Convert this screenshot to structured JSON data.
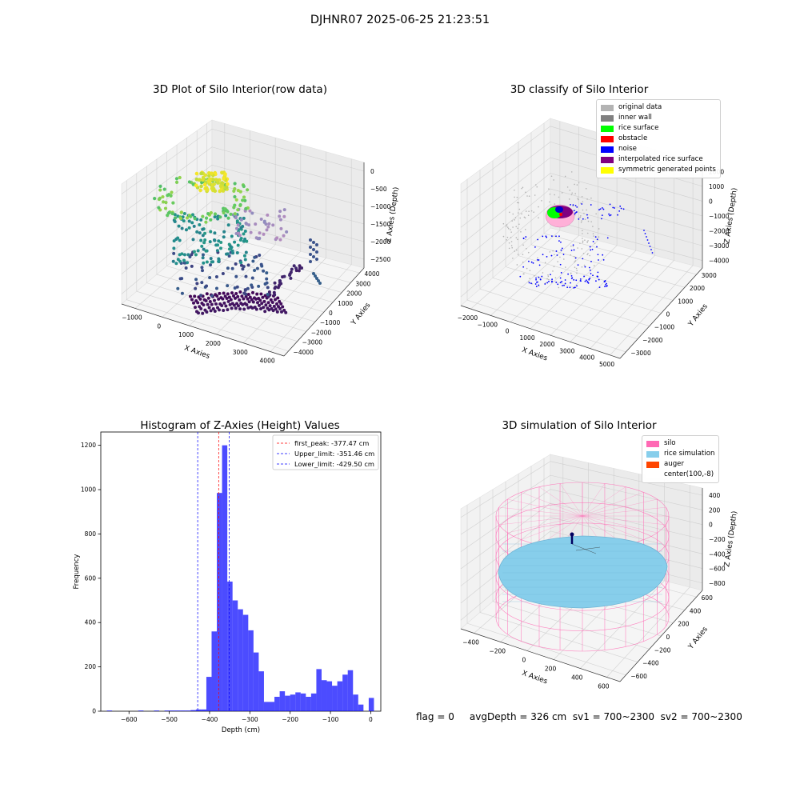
{
  "figure": {
    "suptitle": "DJHNR07 2025-06-25 21:23:51"
  },
  "status_line": "flag = 0     avgDepth = 326 cm  sv1 = 700~2300  sv2 = 700~2300",
  "chart_data": [
    {
      "type": "scatter3d",
      "title": "3D Plot of Silo Interior(row data)",
      "xlabel": "X Axies",
      "ylabel": "Y Axies",
      "zlabel": "Z Axies (Depth)",
      "x_ticks": [
        "−1000",
        "0",
        "1000",
        "2000",
        "3000",
        "4000"
      ],
      "y_ticks": [
        "−4000",
        "−3000",
        "−2000",
        "−1000",
        "0",
        "1000",
        "2000",
        "3000",
        "4000"
      ],
      "z_ticks": [
        "−2500",
        "−2000",
        "−1500",
        "−1000",
        "−500",
        "0"
      ],
      "colormap": "viridis"
    },
    {
      "type": "scatter3d",
      "title": "3D classify of Silo Interior",
      "xlabel": "X Axies",
      "ylabel": "Y Axies",
      "zlabel": "Z Axies (Depth)",
      "x_ticks": [
        "−2000",
        "−1000",
        "0",
        "1000",
        "2000",
        "3000",
        "4000",
        "5000"
      ],
      "y_ticks": [
        "−3000",
        "−2000",
        "−1000",
        "0",
        "1000",
        "2000",
        "3000"
      ],
      "z_ticks": [
        "−4000",
        "−3000",
        "−2000",
        "−1000",
        "0",
        "1000",
        "2000"
      ],
      "legend": [
        {
          "label": "original data",
          "color": "#b3b3b3"
        },
        {
          "label": "inner wall",
          "color": "#808080"
        },
        {
          "label": "rice surface",
          "color": "#00ff00"
        },
        {
          "label": "obstacle",
          "color": "#ff0000"
        },
        {
          "label": "noise",
          "color": "#0000ff"
        },
        {
          "label": "interpolated rice surface",
          "color": "#800080"
        },
        {
          "label": "symmetric generated points",
          "color": "#ffff00"
        }
      ]
    },
    {
      "type": "bar",
      "title": "Histogram of Z-Axies (Height) Values",
      "xlabel": "Depth (cm)",
      "ylabel": "Frequency",
      "xlim": [
        -670,
        25
      ],
      "ylim": [
        0,
        1260
      ],
      "x_ticks": [
        -600,
        -500,
        -400,
        -300,
        -200,
        -100,
        0
      ],
      "y_ticks": [
        0,
        200,
        400,
        600,
        800,
        1000,
        1200
      ],
      "bar_color": "#0000ff",
      "bin_width": 13,
      "bins": [
        [
          -655,
          3
        ],
        [
          -642,
          0
        ],
        [
          -629,
          0
        ],
        [
          -616,
          0
        ],
        [
          -603,
          0
        ],
        [
          -590,
          0
        ],
        [
          -577,
          3
        ],
        [
          -564,
          0
        ],
        [
          -551,
          0
        ],
        [
          -538,
          3
        ],
        [
          -525,
          0
        ],
        [
          -512,
          3
        ],
        [
          -499,
          3
        ],
        [
          -486,
          3
        ],
        [
          -473,
          3
        ],
        [
          -460,
          3
        ],
        [
          -447,
          5
        ],
        [
          -434,
          8
        ],
        [
          -421,
          8
        ],
        [
          -408,
          155
        ],
        [
          -395,
          360
        ],
        [
          -382,
          985
        ],
        [
          -369,
          1200
        ],
        [
          -356,
          585
        ],
        [
          -343,
          500
        ],
        [
          -330,
          460
        ],
        [
          -317,
          435
        ],
        [
          -304,
          365
        ],
        [
          -291,
          265
        ],
        [
          -278,
          180
        ],
        [
          -265,
          42
        ],
        [
          -252,
          42
        ],
        [
          -239,
          65
        ],
        [
          -226,
          90
        ],
        [
          -213,
          70
        ],
        [
          -200,
          75
        ],
        [
          -187,
          85
        ],
        [
          -174,
          80
        ],
        [
          -161,
          65
        ],
        [
          -148,
          80
        ],
        [
          -135,
          190
        ],
        [
          -122,
          140
        ],
        [
          -109,
          135
        ],
        [
          -96,
          115
        ],
        [
          -83,
          135
        ],
        [
          -70,
          165
        ],
        [
          -57,
          185
        ],
        [
          -44,
          75
        ],
        [
          -31,
          30
        ],
        [
          -18,
          0
        ],
        [
          -5,
          60
        ]
      ],
      "lines": [
        {
          "label": "first_peak: -377.47 cm",
          "x": -377.47,
          "color": "#ff0000"
        },
        {
          "label": "Upper_limit: -351.46 cm",
          "x": -351.46,
          "color": "#0000ff"
        },
        {
          "label": "Lower_limit: -429.50 cm",
          "x": -429.5,
          "color": "#0000ff"
        }
      ]
    },
    {
      "type": "surface3d",
      "title": "3D simulation of Silo Interior",
      "xlabel": "X Axies",
      "ylabel": "Y Axies",
      "zlabel": "Z Axies (Depth)",
      "x_ticks": [
        "−400",
        "−200",
        "0",
        "200",
        "400",
        "600"
      ],
      "y_ticks": [
        "−600",
        "−400",
        "−200",
        "0",
        "200",
        "400",
        "600"
      ],
      "z_ticks": [
        "−800",
        "−600",
        "−400",
        "−200",
        "0",
        "200",
        "400"
      ],
      "legend": [
        {
          "label": "silo",
          "color": "#ff69b4"
        },
        {
          "label": "rice simulation",
          "color": "#87ceeb"
        },
        {
          "label": "auger",
          "color": "#ff4500"
        },
        {
          "label": "center(100,-8)",
          "color": "#ffffff"
        }
      ]
    }
  ]
}
